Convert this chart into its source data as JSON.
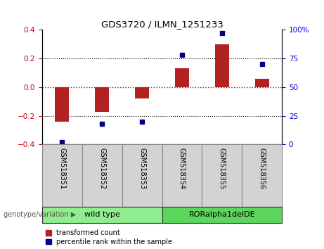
{
  "title": "GDS3720 / ILMN_1251233",
  "samples": [
    "GSM518351",
    "GSM518352",
    "GSM518353",
    "GSM518354",
    "GSM518355",
    "GSM518356"
  ],
  "bar_values": [
    -0.24,
    -0.17,
    -0.08,
    0.13,
    0.3,
    0.06
  ],
  "scatter_values_raw": [
    2,
    18,
    20,
    78,
    97,
    70
  ],
  "ylim_left": [
    -0.4,
    0.4
  ],
  "ylim_right": [
    0,
    100
  ],
  "bar_color": "#b22222",
  "scatter_color": "#00008b",
  "hline_color": "#cc0000",
  "dotted_color": "#000000",
  "genotype_groups": [
    {
      "label": "wild type",
      "span": [
        0,
        3
      ],
      "color": "#90ee90"
    },
    {
      "label": "RORalpha1delDE",
      "span": [
        3,
        6
      ],
      "color": "#5cd65c"
    }
  ],
  "tick_label_color_left": "#cc0000",
  "tick_label_color_right": "#0000cc",
  "legend_bar_label": "transformed count",
  "legend_scatter_label": "percentile rank within the sample",
  "genotype_label": "genotype/variation",
  "sample_box_color": "#d3d3d3",
  "sample_box_edge": "#888888"
}
